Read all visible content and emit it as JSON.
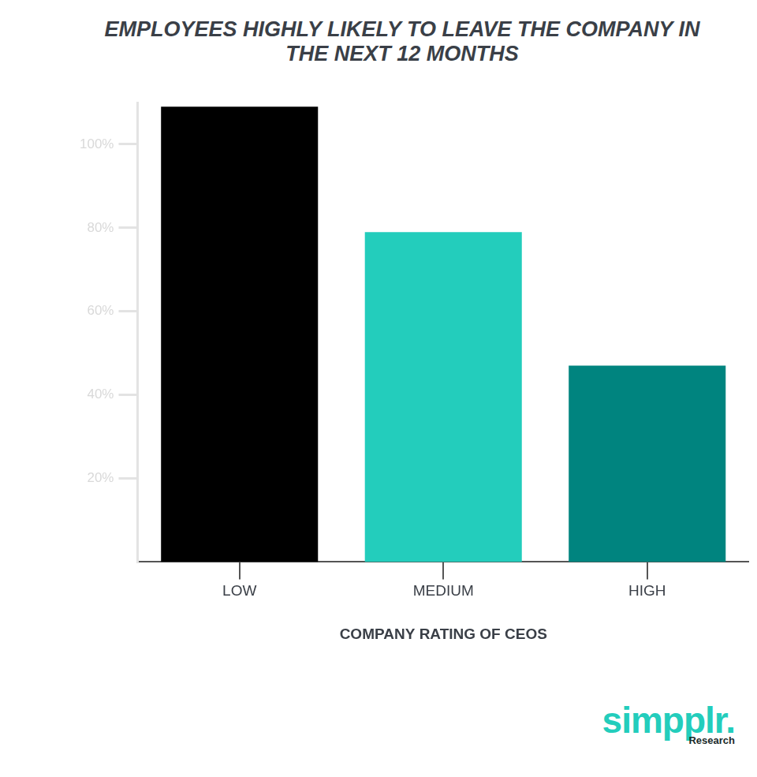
{
  "chart_data": {
    "type": "bar",
    "title": "EMPLOYEES HIGHLY LIKELY TO LEAVE THE COMPANY IN THE NEXT 12 MONTHS",
    "x_label": "COMPANY RATING OF CEOS",
    "categories": [
      "LOW",
      "MEDIUM",
      "HIGH"
    ],
    "values": [
      109,
      79,
      47
    ],
    "colors": [
      "#000000",
      "#23cdbc",
      "#00847f"
    ],
    "ylim": [
      0,
      110
    ],
    "yticks": [
      {
        "value": 20,
        "label": "20%"
      },
      {
        "value": 40,
        "label": "40%"
      },
      {
        "value": 60,
        "label": "60%"
      },
      {
        "value": 80,
        "label": "80%"
      },
      {
        "value": 100,
        "label": "100%"
      }
    ],
    "grid": false,
    "annotations": [
      "simpplr.",
      "Research"
    ]
  }
}
